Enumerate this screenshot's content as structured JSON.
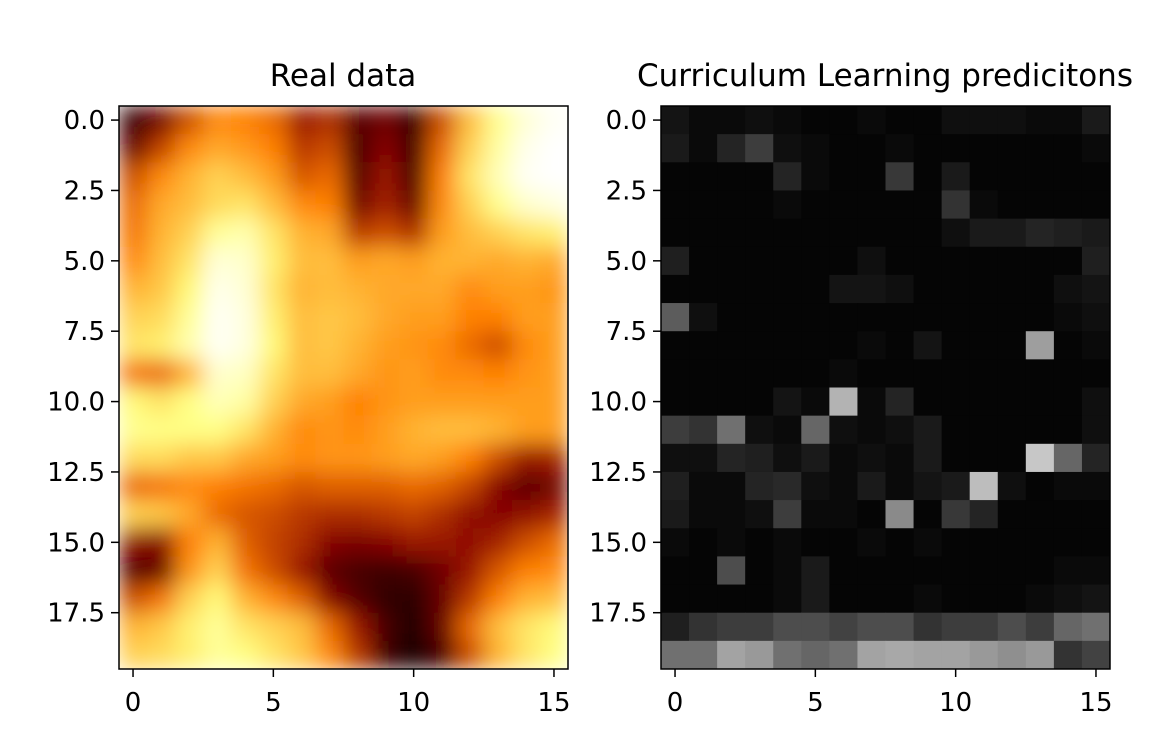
{
  "chart_data": [
    {
      "type": "heatmap",
      "title": "Real data",
      "colormap": "afmhot",
      "xlim": [
        -0.5,
        15.5
      ],
      "ylim": [
        19.5,
        -0.5
      ],
      "xticks": [
        0,
        5,
        10,
        15
      ],
      "xtick_labels": [
        "0",
        "5",
        "10",
        "15"
      ],
      "yticks": [
        0,
        2.5,
        5,
        7.5,
        10,
        12.5,
        15,
        17.5
      ],
      "ytick_labels": [
        "0.0",
        "2.5",
        "5.0",
        "7.5",
        "10.0",
        "12.5",
        "15.0",
        "17.5"
      ],
      "interpolation": "smooth",
      "z": [
        [
          0.1,
          0.22,
          0.4,
          0.52,
          0.5,
          0.46,
          0.3,
          0.34,
          0.16,
          0.22,
          0.1,
          0.4,
          0.62,
          0.78,
          0.92,
          0.98
        ],
        [
          0.2,
          0.38,
          0.52,
          0.58,
          0.55,
          0.5,
          0.36,
          0.4,
          0.14,
          0.26,
          0.12,
          0.46,
          0.66,
          0.82,
          0.96,
          1.0
        ],
        [
          0.4,
          0.52,
          0.6,
          0.66,
          0.62,
          0.56,
          0.42,
          0.46,
          0.16,
          0.3,
          0.14,
          0.5,
          0.7,
          0.86,
          0.98,
          1.0
        ],
        [
          0.46,
          0.58,
          0.62,
          0.68,
          0.7,
          0.62,
          0.52,
          0.5,
          0.22,
          0.32,
          0.2,
          0.52,
          0.66,
          0.78,
          0.9,
          0.94
        ],
        [
          0.48,
          0.6,
          0.66,
          0.8,
          0.84,
          0.7,
          0.6,
          0.58,
          0.36,
          0.4,
          0.34,
          0.56,
          0.62,
          0.66,
          0.7,
          0.72
        ],
        [
          0.52,
          0.62,
          0.7,
          0.92,
          0.9,
          0.72,
          0.62,
          0.62,
          0.56,
          0.58,
          0.56,
          0.6,
          0.6,
          0.58,
          0.6,
          0.58
        ],
        [
          0.6,
          0.64,
          0.74,
          0.96,
          0.92,
          0.7,
          0.6,
          0.62,
          0.6,
          0.58,
          0.58,
          0.58,
          0.52,
          0.56,
          0.56,
          0.54
        ],
        [
          0.66,
          0.68,
          0.8,
          0.98,
          0.94,
          0.72,
          0.62,
          0.64,
          0.62,
          0.58,
          0.56,
          0.56,
          0.5,
          0.5,
          0.56,
          0.56
        ],
        [
          0.7,
          0.72,
          0.84,
          0.98,
          0.94,
          0.74,
          0.62,
          0.64,
          0.6,
          0.56,
          0.54,
          0.52,
          0.46,
          0.4,
          0.52,
          0.56
        ],
        [
          0.48,
          0.46,
          0.6,
          0.9,
          0.88,
          0.7,
          0.62,
          0.62,
          0.58,
          0.54,
          0.56,
          0.52,
          0.52,
          0.5,
          0.54,
          0.56
        ],
        [
          0.74,
          0.7,
          0.76,
          0.86,
          0.82,
          0.66,
          0.58,
          0.56,
          0.5,
          0.54,
          0.56,
          0.56,
          0.56,
          0.56,
          0.56,
          0.56
        ],
        [
          0.78,
          0.76,
          0.76,
          0.76,
          0.7,
          0.6,
          0.52,
          0.54,
          0.52,
          0.56,
          0.6,
          0.62,
          0.62,
          0.6,
          0.56,
          0.56
        ],
        [
          0.68,
          0.68,
          0.64,
          0.64,
          0.58,
          0.56,
          0.52,
          0.54,
          0.54,
          0.56,
          0.58,
          0.56,
          0.5,
          0.4,
          0.3,
          0.32
        ],
        [
          0.46,
          0.48,
          0.52,
          0.5,
          0.48,
          0.46,
          0.42,
          0.44,
          0.44,
          0.44,
          0.46,
          0.44,
          0.38,
          0.26,
          0.18,
          0.22
        ],
        [
          0.66,
          0.64,
          0.58,
          0.46,
          0.42,
          0.4,
          0.36,
          0.34,
          0.34,
          0.36,
          0.38,
          0.34,
          0.28,
          0.26,
          0.28,
          0.32
        ],
        [
          0.28,
          0.26,
          0.5,
          0.6,
          0.44,
          0.38,
          0.34,
          0.26,
          0.24,
          0.26,
          0.3,
          0.3,
          0.28,
          0.32,
          0.4,
          0.46
        ],
        [
          0.16,
          0.2,
          0.54,
          0.66,
          0.48,
          0.4,
          0.3,
          0.18,
          0.14,
          0.12,
          0.14,
          0.22,
          0.3,
          0.42,
          0.5,
          0.52
        ],
        [
          0.4,
          0.48,
          0.66,
          0.74,
          0.6,
          0.52,
          0.44,
          0.26,
          0.16,
          0.1,
          0.08,
          0.2,
          0.36,
          0.5,
          0.6,
          0.62
        ],
        [
          0.6,
          0.64,
          0.72,
          0.8,
          0.7,
          0.66,
          0.62,
          0.46,
          0.3,
          0.14,
          0.06,
          0.2,
          0.46,
          0.62,
          0.7,
          0.74
        ],
        [
          0.66,
          0.68,
          0.72,
          0.8,
          0.76,
          0.7,
          0.64,
          0.52,
          0.36,
          0.12,
          0.04,
          0.14,
          0.4,
          0.6,
          0.7,
          0.76
        ]
      ]
    },
    {
      "type": "heatmap",
      "title": "Curriculum Learning predicitons",
      "colormap": "gray",
      "xlim": [
        -0.5,
        15.5
      ],
      "ylim": [
        19.5,
        -0.5
      ],
      "xticks": [
        0,
        5,
        10,
        15
      ],
      "xtick_labels": [
        "0",
        "5",
        "10",
        "15"
      ],
      "yticks": [
        0,
        2.5,
        5,
        7.5,
        10,
        12.5,
        15,
        17.5
      ],
      "ytick_labels": [
        "0.0",
        "2.5",
        "5.0",
        "7.5",
        "10.0",
        "12.5",
        "15.0",
        "17.5"
      ],
      "interpolation": "nearest",
      "z": [
        [
          0.08,
          0.04,
          0.04,
          0.06,
          0.04,
          0.02,
          0.02,
          0.04,
          0.02,
          0.02,
          0.06,
          0.06,
          0.06,
          0.04,
          0.04,
          0.1
        ],
        [
          0.1,
          0.04,
          0.14,
          0.24,
          0.06,
          0.04,
          0.02,
          0.02,
          0.04,
          0.02,
          0.02,
          0.02,
          0.02,
          0.02,
          0.02,
          0.04
        ],
        [
          0.02,
          0.02,
          0.02,
          0.02,
          0.14,
          0.04,
          0.02,
          0.02,
          0.22,
          0.02,
          0.1,
          0.02,
          0.02,
          0.02,
          0.02,
          0.02
        ],
        [
          0.02,
          0.02,
          0.02,
          0.02,
          0.04,
          0.02,
          0.02,
          0.02,
          0.02,
          0.02,
          0.2,
          0.04,
          0.02,
          0.02,
          0.02,
          0.02
        ],
        [
          0.02,
          0.02,
          0.02,
          0.02,
          0.02,
          0.02,
          0.02,
          0.02,
          0.02,
          0.02,
          0.06,
          0.1,
          0.1,
          0.14,
          0.12,
          0.1
        ],
        [
          0.12,
          0.02,
          0.02,
          0.02,
          0.02,
          0.02,
          0.02,
          0.06,
          0.02,
          0.02,
          0.02,
          0.02,
          0.02,
          0.02,
          0.02,
          0.12
        ],
        [
          0.02,
          0.02,
          0.02,
          0.02,
          0.02,
          0.02,
          0.08,
          0.08,
          0.06,
          0.02,
          0.02,
          0.02,
          0.02,
          0.02,
          0.06,
          0.08
        ],
        [
          0.36,
          0.06,
          0.02,
          0.02,
          0.02,
          0.02,
          0.02,
          0.02,
          0.02,
          0.02,
          0.02,
          0.02,
          0.02,
          0.02,
          0.04,
          0.06
        ],
        [
          0.02,
          0.02,
          0.02,
          0.02,
          0.02,
          0.02,
          0.02,
          0.04,
          0.02,
          0.08,
          0.02,
          0.02,
          0.02,
          0.62,
          0.02,
          0.04
        ],
        [
          0.02,
          0.02,
          0.02,
          0.02,
          0.02,
          0.02,
          0.04,
          0.02,
          0.02,
          0.02,
          0.02,
          0.02,
          0.02,
          0.02,
          0.02,
          0.02
        ],
        [
          0.02,
          0.02,
          0.02,
          0.02,
          0.08,
          0.04,
          0.7,
          0.04,
          0.14,
          0.02,
          0.02,
          0.02,
          0.02,
          0.02,
          0.02,
          0.06
        ],
        [
          0.24,
          0.2,
          0.44,
          0.06,
          0.04,
          0.4,
          0.06,
          0.04,
          0.06,
          0.1,
          0.02,
          0.02,
          0.02,
          0.02,
          0.02,
          0.06
        ],
        [
          0.06,
          0.06,
          0.14,
          0.12,
          0.06,
          0.1,
          0.04,
          0.06,
          0.04,
          0.1,
          0.02,
          0.02,
          0.02,
          0.78,
          0.4,
          0.14
        ],
        [
          0.12,
          0.04,
          0.04,
          0.14,
          0.16,
          0.06,
          0.04,
          0.1,
          0.04,
          0.08,
          0.1,
          0.74,
          0.06,
          0.02,
          0.04,
          0.04
        ],
        [
          0.1,
          0.04,
          0.04,
          0.06,
          0.24,
          0.04,
          0.04,
          0.02,
          0.54,
          0.02,
          0.22,
          0.14,
          0.02,
          0.02,
          0.02,
          0.02
        ],
        [
          0.04,
          0.02,
          0.04,
          0.02,
          0.04,
          0.02,
          0.02,
          0.04,
          0.02,
          0.04,
          0.02,
          0.02,
          0.02,
          0.02,
          0.02,
          0.02
        ],
        [
          0.02,
          0.02,
          0.3,
          0.02,
          0.04,
          0.1,
          0.02,
          0.02,
          0.02,
          0.02,
          0.02,
          0.02,
          0.02,
          0.02,
          0.04,
          0.04
        ],
        [
          0.02,
          0.02,
          0.02,
          0.02,
          0.04,
          0.1,
          0.02,
          0.02,
          0.02,
          0.04,
          0.02,
          0.02,
          0.02,
          0.04,
          0.06,
          0.08
        ],
        [
          0.12,
          0.2,
          0.24,
          0.24,
          0.3,
          0.3,
          0.26,
          0.3,
          0.3,
          0.2,
          0.24,
          0.24,
          0.3,
          0.24,
          0.4,
          0.44
        ],
        [
          0.44,
          0.44,
          0.64,
          0.6,
          0.44,
          0.4,
          0.44,
          0.64,
          0.66,
          0.64,
          0.64,
          0.6,
          0.56,
          0.6,
          0.2,
          0.26
        ]
      ]
    }
  ]
}
